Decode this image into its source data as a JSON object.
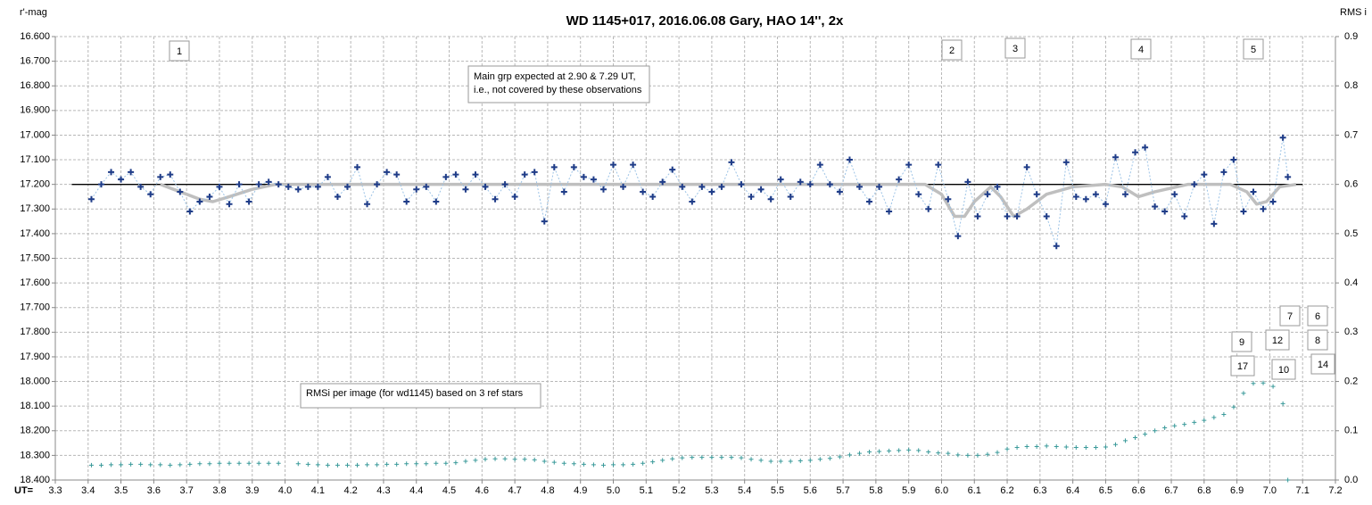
{
  "chart_data": {
    "type": "scatter",
    "title": "WD 1145+017,  2016.06.08  Gary, HAO  14'',  2x",
    "y_label": "r'-mag",
    "y2_label": "RMS i",
    "x_label": "UT=",
    "xlim": [
      3.3,
      7.2
    ],
    "xticks": [
      3.3,
      3.4,
      3.5,
      3.6,
      3.7,
      3.8,
      3.9,
      {
        "value": 4,
        "label": "4.0"
      },
      4.1,
      4.2,
      4.3,
      4.4,
      4.5,
      4.6,
      4.7,
      4.8,
      4.9,
      {
        "value": 5,
        "label": "5.0"
      },
      5.1,
      5.2,
      5.3,
      5.4,
      5.5,
      5.6,
      5.7,
      5.8,
      5.9,
      {
        "value": 6,
        "label": "6.0"
      },
      6.1,
      6.2,
      6.3,
      6.4,
      6.5,
      6.6,
      6.7,
      6.8,
      6.9,
      {
        "value": 7,
        "label": "7.0"
      },
      7.1,
      7.2
    ],
    "ylim": [
      18.4,
      16.6
    ],
    "yticks": [
      {
        "value": 16.6,
        "label": "16.600"
      },
      {
        "value": 16.7,
        "label": "16.700"
      },
      {
        "value": 16.8,
        "label": "16.800"
      },
      {
        "value": 16.9,
        "label": "16.900"
      },
      {
        "value": 17.0,
        "label": "17.000"
      },
      {
        "value": 17.1,
        "label": "17.100"
      },
      {
        "value": 17.2,
        "label": "17.200"
      },
      {
        "value": 17.3,
        "label": "17.300"
      },
      {
        "value": 17.4,
        "label": "17.400"
      },
      {
        "value": 17.5,
        "label": "17.500"
      },
      {
        "value": 17.6,
        "label": "17.600"
      },
      {
        "value": 17.7,
        "label": "17.700"
      },
      {
        "value": 17.8,
        "label": "17.800"
      },
      {
        "value": 17.9,
        "label": "17.900"
      },
      {
        "value": 18.0,
        "label": "18.000"
      },
      {
        "value": 18.1,
        "label": "18.100"
      },
      {
        "value": 18.2,
        "label": "18.200"
      },
      {
        "value": 18.3,
        "label": "18.300"
      },
      {
        "value": 18.4,
        "label": "18.400"
      }
    ],
    "y2lim": [
      0,
      0.9
    ],
    "y2ticks": [
      {
        "value": 0,
        "label": "0.0"
      },
      0.1,
      0.2,
      0.3,
      0.4,
      0.5,
      0.6,
      0.7,
      0.8,
      0.9
    ],
    "grid": true,
    "series": [
      {
        "style": "markers-dashed",
        "color": "#1f3c88",
        "line_color": "#9cc3e6",
        "x": [
          3.41,
          3.44,
          3.47,
          3.5,
          3.53,
          3.56,
          3.59,
          3.62,
          3.65,
          3.68,
          3.71,
          3.74,
          3.77,
          3.8,
          3.83,
          3.86,
          3.89,
          3.92,
          3.95,
          3.98,
          4.01,
          4.04,
          4.07,
          4.1,
          4.13,
          4.16,
          4.19,
          4.22,
          4.25,
          4.28,
          4.31,
          4.34,
          4.37,
          4.4,
          4.43,
          4.46,
          4.49,
          4.52,
          4.55,
          4.58,
          4.61,
          4.64,
          4.67,
          4.7,
          4.73,
          4.76,
          4.79,
          4.82,
          4.85,
          4.88,
          4.91,
          4.94,
          4.97,
          5,
          5.03,
          5.06,
          5.09,
          5.12,
          5.15,
          5.18,
          5.21,
          5.24,
          5.27,
          5.3,
          5.33,
          5.36,
          5.39,
          5.42,
          5.45,
          5.48,
          5.51,
          5.54,
          5.57,
          5.6,
          5.63,
          5.66,
          5.69,
          5.72,
          5.75,
          5.78,
          5.81,
          5.84,
          5.87,
          5.9,
          5.93,
          5.96,
          5.99,
          6.02,
          6.05,
          6.08,
          6.11,
          6.14,
          6.17,
          6.2,
          6.23,
          6.26,
          6.29,
          6.32,
          6.35,
          6.38,
          6.41,
          6.44,
          6.47,
          6.5,
          6.53,
          6.56,
          6.59,
          6.62,
          6.65,
          6.68,
          6.71,
          6.74,
          6.77,
          6.8,
          6.83,
          6.86,
          6.89,
          6.92,
          6.95,
          6.98,
          7.01,
          7.04,
          7.055
        ],
        "values": [
          17.26,
          17.2,
          17.15,
          17.18,
          17.15,
          17.21,
          17.24,
          17.17,
          17.16,
          17.23,
          17.31,
          17.27,
          17.25,
          17.21,
          17.28,
          17.2,
          17.27,
          17.2,
          17.19,
          17.2,
          17.21,
          17.22,
          17.21,
          17.21,
          17.17,
          17.25,
          17.21,
          17.13,
          17.28,
          17.2,
          17.15,
          17.16,
          17.27,
          17.22,
          17.21,
          17.27,
          17.17,
          17.16,
          17.22,
          17.16,
          17.21,
          17.26,
          17.2,
          17.25,
          17.16,
          17.15,
          17.35,
          17.13,
          17.23,
          17.13,
          17.17,
          17.18,
          17.22,
          17.12,
          17.21,
          17.12,
          17.23,
          17.25,
          17.19,
          17.14,
          17.21,
          17.27,
          17.21,
          17.23,
          17.21,
          17.11,
          17.2,
          17.25,
          17.22,
          17.26,
          17.18,
          17.25,
          17.19,
          17.2,
          17.12,
          17.2,
          17.23,
          17.1,
          17.21,
          17.27,
          17.21,
          17.31,
          17.18,
          17.12,
          17.24,
          17.3,
          17.12,
          17.26,
          17.41,
          17.19,
          17.33,
          17.24,
          17.21,
          17.33,
          17.33,
          17.13,
          17.24,
          17.33,
          17.45,
          17.11,
          17.25,
          17.26,
          17.24,
          17.28,
          17.09,
          17.24,
          17.07,
          17.05,
          17.29,
          17.31,
          17.24,
          17.33,
          17.2,
          17.16,
          17.36,
          17.15,
          17.1,
          17.31,
          17.23,
          17.3,
          17.27,
          17.01,
          17.17
        ]
      },
      {
        "style": "line",
        "color": "#bfbfbf",
        "x": [
          3.62,
          3.68,
          3.74,
          3.78,
          3.83,
          3.9,
          3.97,
          5.95,
          6.0,
          6.04,
          6.07,
          6.1,
          6.15,
          6.18,
          6.22,
          6.26,
          6.32,
          6.4,
          6.5,
          6.55,
          6.6,
          6.65,
          6.75,
          6.88,
          6.93,
          6.96,
          6.99,
          7.03,
          7.08
        ],
        "values": [
          17.2,
          17.23,
          17.26,
          17.27,
          17.25,
          17.22,
          17.2,
          17.2,
          17.24,
          17.33,
          17.33,
          17.27,
          17.21,
          17.25,
          17.33,
          17.3,
          17.24,
          17.21,
          17.2,
          17.21,
          17.25,
          17.23,
          17.2,
          17.2,
          17.23,
          17.28,
          17.27,
          17.21,
          17.2
        ]
      },
      {
        "style": "thin-line",
        "color": "#000000",
        "x": [
          3.35,
          7.1
        ],
        "values": [
          17.2,
          17.2
        ]
      },
      {
        "style": "small-markers",
        "color": "#3a9a9a",
        "axis": "y2",
        "x": [
          3.41,
          3.44,
          3.47,
          3.5,
          3.53,
          3.56,
          3.59,
          3.62,
          3.65,
          3.68,
          3.71,
          3.74,
          3.77,
          3.8,
          3.83,
          3.86,
          3.89,
          3.92,
          3.95,
          3.98,
          4.01,
          4.04,
          4.07,
          4.1,
          4.13,
          4.16,
          4.19,
          4.22,
          4.25,
          4.28,
          4.31,
          4.34,
          4.37,
          4.4,
          4.43,
          4.46,
          4.49,
          4.52,
          4.55,
          4.58,
          4.61,
          4.64,
          4.67,
          4.7,
          4.73,
          4.76,
          4.79,
          4.82,
          4.85,
          4.88,
          4.91,
          4.94,
          4.97,
          5,
          5.03,
          5.06,
          5.09,
          5.12,
          5.15,
          5.18,
          5.21,
          5.24,
          5.27,
          5.3,
          5.33,
          5.36,
          5.39,
          5.42,
          5.45,
          5.48,
          5.51,
          5.54,
          5.57,
          5.6,
          5.63,
          5.66,
          5.69,
          5.72,
          5.75,
          5.78,
          5.81,
          5.84,
          5.87,
          5.9,
          5.93,
          5.96,
          5.99,
          6.02,
          6.05,
          6.08,
          6.11,
          6.14,
          6.17,
          6.2,
          6.23,
          6.26,
          6.29,
          6.32,
          6.35,
          6.38,
          6.41,
          6.44,
          6.47,
          6.5,
          6.53,
          6.56,
          6.59,
          6.62,
          6.65,
          6.68,
          6.71,
          6.74,
          6.77,
          6.8,
          6.83,
          6.86,
          6.89,
          6.92,
          6.95,
          6.98,
          7.01,
          7.04,
          7.055
        ],
        "values": [
          0.03,
          0.03,
          0.031,
          0.031,
          0.032,
          0.032,
          0.031,
          0.031,
          0.03,
          0.031,
          0.032,
          0.033,
          0.033,
          0.034,
          0.034,
          0.034,
          0.034,
          0.034,
          0.034,
          0.034,
          null,
          0.033,
          0.032,
          0.031,
          0.03,
          0.03,
          0.03,
          0.03,
          0.031,
          0.031,
          0.032,
          0.032,
          0.033,
          0.033,
          0.033,
          0.034,
          0.034,
          0.035,
          0.038,
          0.04,
          0.042,
          0.043,
          0.043,
          0.042,
          0.042,
          0.041,
          0.038,
          0.036,
          0.034,
          0.033,
          0.032,
          0.031,
          0.03,
          0.031,
          0.031,
          0.032,
          0.034,
          0.037,
          0.04,
          0.043,
          0.045,
          0.046,
          0.046,
          0.046,
          0.046,
          0.046,
          0.045,
          0.042,
          0.04,
          0.038,
          0.038,
          0.038,
          0.039,
          0.04,
          0.042,
          0.044,
          0.047,
          0.051,
          0.054,
          0.057,
          0.058,
          0.059,
          0.06,
          0.061,
          0.06,
          0.057,
          0.055,
          0.054,
          0.051,
          0.05,
          0.05,
          0.052,
          0.056,
          0.063,
          0.066,
          0.068,
          0.068,
          0.069,
          0.068,
          0.067,
          0.066,
          0.066,
          0.066,
          0.067,
          0.072,
          0.08,
          0.086,
          0.093,
          0.1,
          0.106,
          0.11,
          0.113,
          0.117,
          0.121,
          0.127,
          0.133,
          0.148,
          0.176,
          0.196,
          0.197,
          0.19,
          0.155,
          0
        ]
      }
    ],
    "annotations": [
      "1",
      "2",
      "3",
      "4",
      "5",
      "6",
      "7",
      "8",
      "9",
      "12",
      "17",
      "10",
      "14"
    ],
    "notes": [
      "Main grp expected at 2.90 & 7.29 UT,",
      "i.e., not covered by these observations",
      "RMSi per image (for wd1145) based on 3 ref stars"
    ]
  }
}
